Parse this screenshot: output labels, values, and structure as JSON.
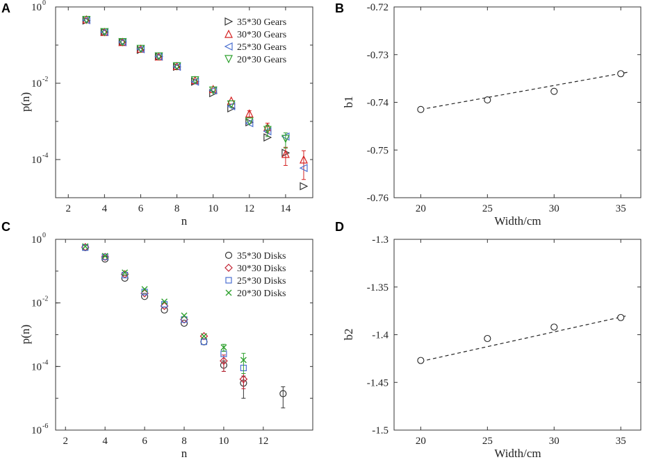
{
  "chart_data": [
    {
      "panel": "A",
      "type": "scatter",
      "xlabel": "n",
      "ylabel": "p(n)",
      "yscale": "log",
      "xlim": [
        1.3,
        15.5
      ],
      "ylim_exp": [
        -5,
        0
      ],
      "xticks": [
        "2",
        "4",
        "6",
        "8",
        "10",
        "12",
        "14"
      ],
      "yticks": [
        {
          "base": "10",
          "exp": "-4"
        },
        {
          "base": "10",
          "exp": "-2"
        },
        {
          "base": "10",
          "exp": "0"
        }
      ],
      "legend_position": "top-right",
      "series": [
        {
          "name": "35*30 Gears",
          "marker": "tri-right",
          "color": "#333333",
          "x": [
            3,
            4,
            5,
            6,
            7,
            8,
            9,
            10,
            11,
            12,
            13,
            14,
            15
          ],
          "y": [
            0.44,
            0.22,
            0.12,
            0.075,
            0.05,
            0.027,
            0.011,
            0.0055,
            0.0022,
            0.00095,
            0.00038,
            0.00015,
            2e-05
          ]
        },
        {
          "name": "30*30 Gears",
          "marker": "tri-up",
          "color": "#d42020",
          "x": [
            3,
            4,
            5,
            6,
            7,
            8,
            9,
            10,
            11,
            12,
            13,
            14,
            15
          ],
          "y": [
            0.47,
            0.22,
            0.12,
            0.08,
            0.05,
            0.028,
            0.012,
            0.007,
            0.0035,
            0.0016,
            0.0007,
            0.00014,
            0.0001
          ],
          "err": [
            null,
            null,
            null,
            null,
            null,
            null,
            null,
            null,
            null,
            0.0003,
            0.0002,
            7e-05,
            7e-05
          ]
        },
        {
          "name": "25*30 Gears",
          "marker": "tri-left",
          "color": "#4a6fd0",
          "x": [
            3,
            4,
            5,
            6,
            7,
            8,
            9,
            10,
            11,
            12,
            13,
            14,
            15
          ],
          "y": [
            0.45,
            0.22,
            0.12,
            0.078,
            0.05,
            0.027,
            0.011,
            0.0065,
            0.0025,
            0.0009,
            0.00055,
            0.0004,
            6e-05
          ]
        },
        {
          "name": "20*30 Gears",
          "marker": "tri-down",
          "color": "#2ea02e",
          "x": [
            3,
            4,
            5,
            6,
            7,
            8,
            9,
            10,
            11,
            12,
            13,
            14
          ],
          "y": [
            0.46,
            0.22,
            0.12,
            0.08,
            0.051,
            0.028,
            0.012,
            0.0065,
            0.0028,
            0.001,
            0.0006,
            0.00035
          ],
          "err": [
            null,
            null,
            null,
            null,
            null,
            null,
            null,
            null,
            null,
            null,
            0.0002,
            0.00015
          ]
        }
      ]
    },
    {
      "panel": "B",
      "type": "scatter",
      "xlabel": "Width/cm",
      "ylabel": "b1",
      "xlim": [
        18,
        36.5
      ],
      "ylim": [
        -0.76,
        -0.72
      ],
      "xticks": [
        "20",
        "25",
        "30",
        "35"
      ],
      "yticks": [
        "-0.72",
        "-0.73",
        "-0.74",
        "-0.75",
        "-0.76"
      ],
      "points": {
        "x": [
          20,
          25,
          30,
          35
        ],
        "y": [
          -0.7415,
          -0.7395,
          -0.7377,
          -0.734
        ]
      },
      "fit": {
        "x": [
          20,
          35.5
        ],
        "y": [
          -0.7415,
          -0.7337
        ]
      }
    },
    {
      "panel": "C",
      "type": "scatter",
      "xlabel": "n",
      "ylabel": "p(n)",
      "yscale": "log",
      "xlim": [
        1.5,
        14.5
      ],
      "ylim_exp": [
        -6,
        0
      ],
      "xticks": [
        "2",
        "4",
        "6",
        "8",
        "10",
        "12"
      ],
      "yticks": [
        {
          "base": "10",
          "exp": "-6"
        },
        {
          "base": "10",
          "exp": "-4"
        },
        {
          "base": "10",
          "exp": "-2"
        },
        {
          "base": "10",
          "exp": "0"
        }
      ],
      "legend_position": "top-right",
      "series": [
        {
          "name": "35*30 Disks",
          "marker": "circle",
          "color": "#333333",
          "x": [
            3,
            4,
            5,
            6,
            7,
            8,
            9,
            10,
            11,
            13
          ],
          "y": [
            0.55,
            0.24,
            0.06,
            0.016,
            0.006,
            0.0023,
            0.0006,
            0.00011,
            3e-05,
            1.4e-05
          ],
          "err": [
            null,
            null,
            null,
            null,
            null,
            null,
            null,
            4e-05,
            2e-05,
            9e-06
          ]
        },
        {
          "name": "30*30 Disks",
          "marker": "diamond",
          "color": "#c02030",
          "x": [
            3,
            4,
            5,
            6,
            7,
            8,
            9,
            10,
            11
          ],
          "y": [
            0.57,
            0.28,
            0.08,
            0.02,
            0.008,
            0.003,
            0.0009,
            0.00015,
            4e-05
          ],
          "err": [
            null,
            null,
            null,
            null,
            null,
            null,
            null,
            8e-05,
            2e-05
          ]
        },
        {
          "name": "25*30 Disks",
          "marker": "square",
          "color": "#4a6fd0",
          "x": [
            3,
            4,
            5,
            6,
            7,
            8,
            9,
            10,
            11
          ],
          "y": [
            0.55,
            0.28,
            0.075,
            0.022,
            0.009,
            0.003,
            0.0006,
            0.00025,
            9e-05
          ]
        },
        {
          "name": "20*30 Disks",
          "marker": "cross",
          "color": "#2ea02e",
          "x": [
            3,
            4,
            5,
            6,
            7,
            8,
            9,
            10,
            11
          ],
          "y": [
            0.6,
            0.3,
            0.09,
            0.027,
            0.011,
            0.004,
            0.0009,
            0.0004,
            0.00016
          ],
          "err": [
            null,
            null,
            null,
            null,
            null,
            null,
            null,
            0.0001,
            0.0001
          ]
        }
      ]
    },
    {
      "panel": "D",
      "type": "scatter",
      "xlabel": "Width/cm",
      "ylabel": "b2",
      "xlim": [
        18,
        36.5
      ],
      "ylim": [
        -1.5,
        -1.3
      ],
      "xticks": [
        "20",
        "25",
        "30",
        "35"
      ],
      "yticks": [
        "-1.3",
        "-1.35",
        "-1.4",
        "-1.45",
        "-1.5"
      ],
      "points": {
        "x": [
          20,
          25,
          30,
          35
        ],
        "y": [
          -1.427,
          -1.404,
          -1.392,
          -1.382
        ]
      },
      "fit": {
        "x": [
          20,
          35.5
        ],
        "y": [
          -1.428,
          -1.38
        ]
      }
    }
  ]
}
